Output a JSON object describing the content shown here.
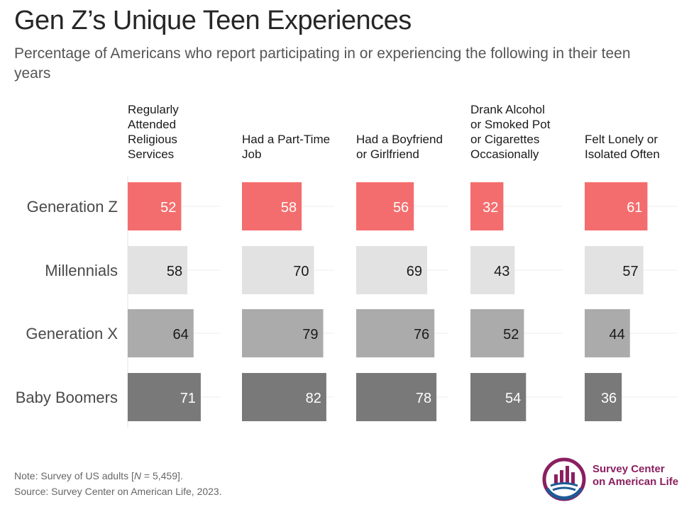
{
  "title": "Gen Z’s Unique Teen Experiences",
  "subtitle": "Percentage of Americans who report participating in or experiencing the following in their teen years",
  "note_prefix": "Note: Survey of US adults [",
  "note_n_symbol": "N",
  "note_suffix": " = 5,459].",
  "source": "Source: Survey Center on American Life, 2023.",
  "logo": {
    "line1": "Survey Center",
    "line2": "on American Life"
  },
  "colors": {
    "Generation Z": "#f46d6e",
    "Millennials": "#e2e2e2",
    "Generation X": "#ababab",
    "Baby Boomers": "#797979"
  },
  "label_colors": {
    "Generation Z": "#ffffff",
    "Millennials": "#1a1a1a",
    "Generation X": "#1a1a1a",
    "Baby Boomers": "#ffffff"
  },
  "chart_data": {
    "type": "bar",
    "orientation": "horizontal",
    "categories": [
      "Generation Z",
      "Millennials",
      "Generation X",
      "Baby Boomers"
    ],
    "panels": [
      {
        "label": "Regularly Attended Religious Services",
        "label_lines": [
          "Regularly",
          "Attended",
          "Religious",
          "Services"
        ],
        "values": [
          52,
          58,
          64,
          71
        ]
      },
      {
        "label": "Had a Part-Time Job",
        "label_lines": [
          "Had a Part-Time",
          "Job"
        ],
        "values": [
          58,
          70,
          79,
          82
        ]
      },
      {
        "label": "Had a Boyfriend or Girlfriend",
        "label_lines": [
          "Had a Boyfriend",
          "or Girlfriend"
        ],
        "values": [
          56,
          69,
          76,
          78
        ]
      },
      {
        "label": "Drank Alcohol or Smoked Pot or Cigarettes Occasionally",
        "label_lines": [
          "Drank Alcohol",
          "or Smoked Pot",
          "or Cigarettes",
          "Occasionally"
        ],
        "values": [
          32,
          43,
          52,
          54
        ]
      },
      {
        "label": "Felt Lonely or Isolated Often",
        "label_lines": [
          "Felt Lonely or",
          "Isolated Often"
        ],
        "values": [
          61,
          57,
          44,
          36
        ]
      }
    ],
    "xlim": [
      0,
      100
    ],
    "grid": true,
    "data_labels": true
  }
}
